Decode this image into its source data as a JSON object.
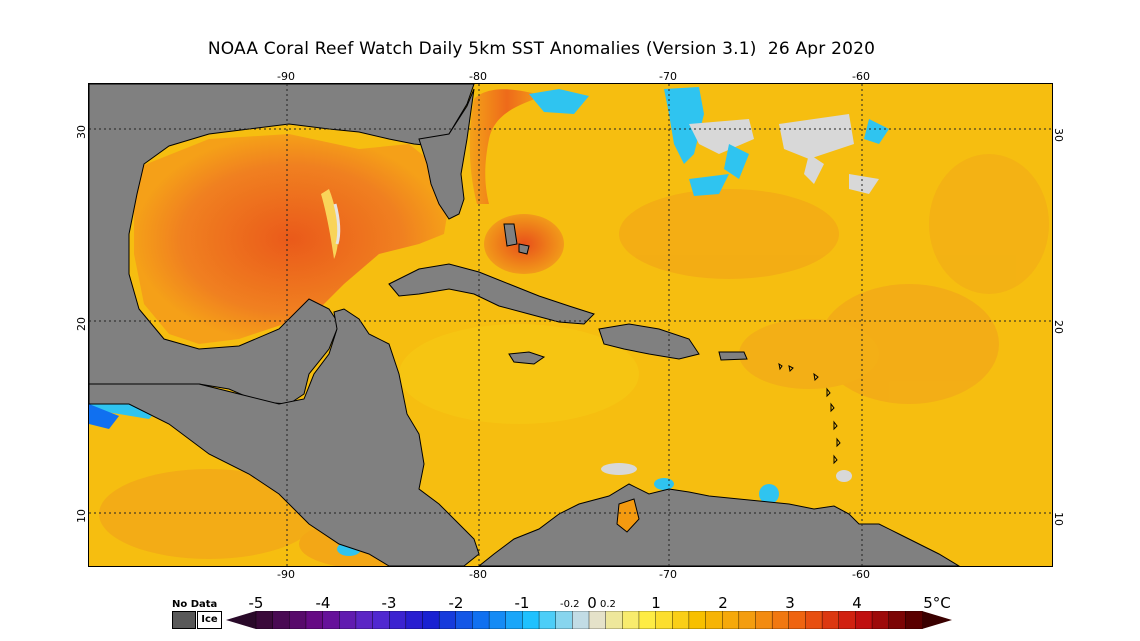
{
  "title": "NOAA Coral Reef Watch Daily 5km SST Anomalies (Version 3.1)  26 Apr 2020",
  "map": {
    "longitude_ticks": [
      "-90",
      "-80",
      "-70",
      "-60"
    ],
    "latitude_ticks": [
      "30",
      "20",
      "10"
    ],
    "land_color": "#808080",
    "ocean_anomaly_color": "#f6be10",
    "graticule": "dotted"
  },
  "legend": {
    "no_data_label": "No Data",
    "ice_label": "Ice",
    "no_data_color": "#595959",
    "ice_color": "#ffffff",
    "tick_labels": [
      "-5",
      "-4",
      "-3",
      "-2",
      "-1",
      "-0.2",
      "0",
      "0.2",
      "1",
      "2",
      "3",
      "4",
      "5°C"
    ],
    "colors": [
      "#3a0a3a",
      "#6a0a8a",
      "#5a2ad0",
      "#1a1ad0",
      "#1070f0",
      "#20c8ff",
      "#e0e0e0",
      "#fff04a",
      "#f8c000",
      "#f49a10",
      "#ee5a10",
      "#c81010",
      "#5a0000"
    ]
  }
}
